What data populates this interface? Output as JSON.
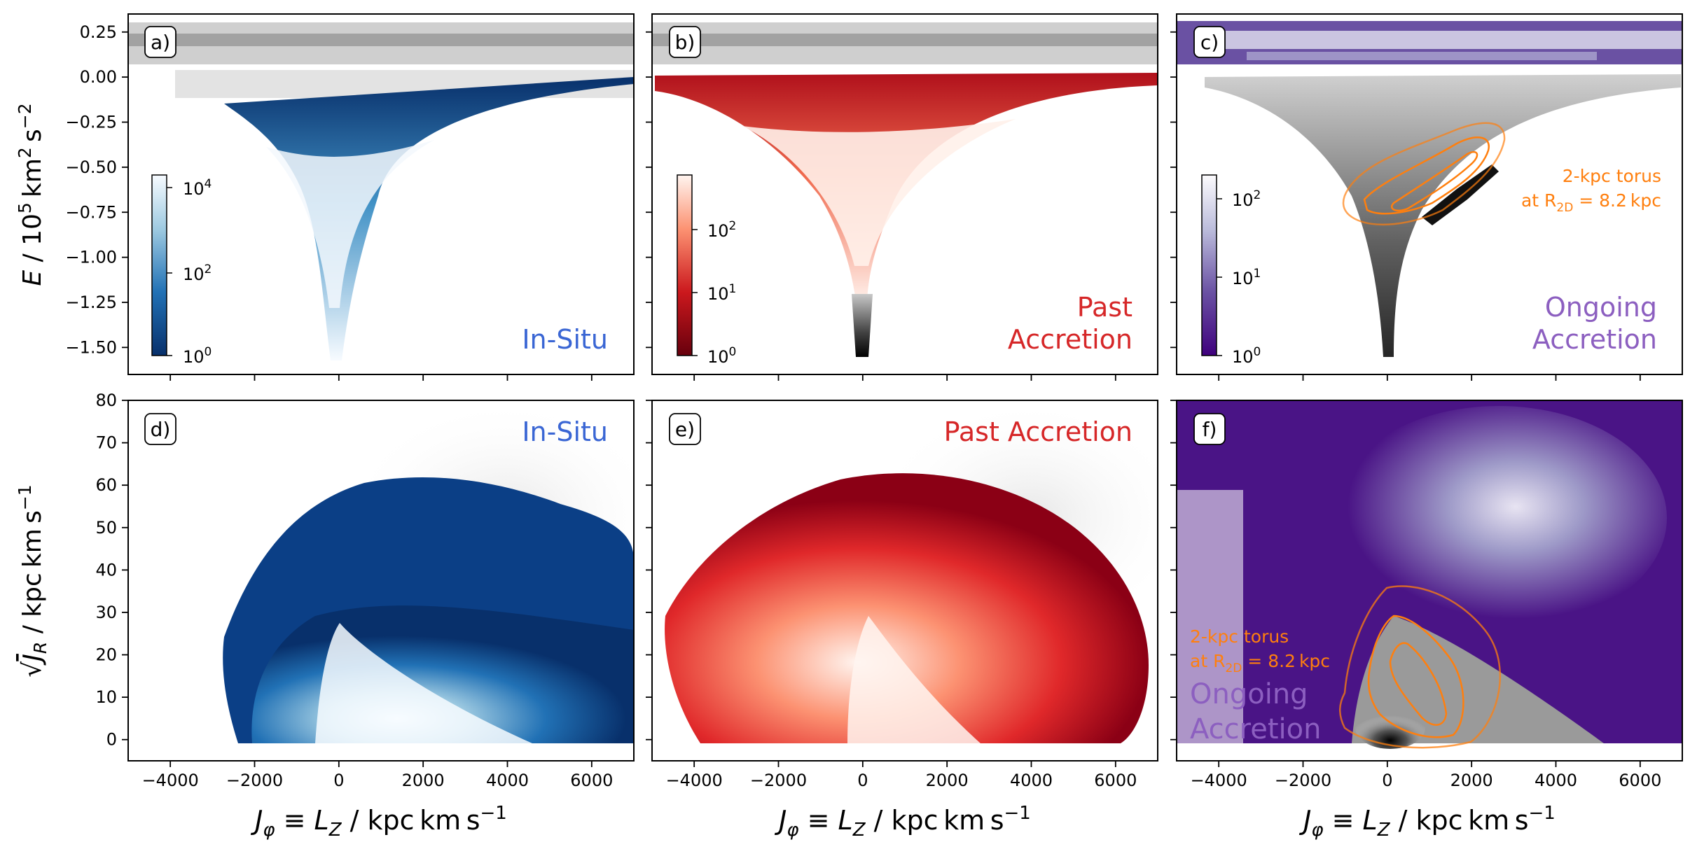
{
  "colors": {
    "in_situ": "#3a66d4",
    "past": "#d62728",
    "ongoing": "#8c5fc0",
    "torus": "#ff7f0e"
  },
  "chart_data": [
    {
      "type": "heatmap",
      "panel": "a)",
      "population": "In-Situ",
      "component_label": "In-Situ",
      "colormap": "Blues_r",
      "background": "grey (all stars)",
      "x": {
        "range": [
          -5000,
          7000
        ],
        "ticks": [
          -4000,
          -2000,
          0,
          2000,
          4000,
          6000
        ],
        "labels_shown": false
      },
      "y": {
        "range": [
          -1.65,
          0.35
        ],
        "ticks": [
          -1.5,
          -1.25,
          -1.0,
          -0.75,
          -0.5,
          -0.25,
          0.0,
          0.25
        ],
        "tick_labels": [
          "−1.50",
          "−1.25",
          "−1.00",
          "−0.75",
          "−0.50",
          "−0.25",
          "0.00",
          "0.25"
        ]
      },
      "colorbar": {
        "scale": "log",
        "ticks": [
          1,
          100,
          10000
        ],
        "tick_labels": [
          "10",
          "10",
          "10"
        ],
        "tick_exps": [
          "0",
          "2",
          "4"
        ]
      }
    },
    {
      "type": "heatmap",
      "panel": "b)",
      "population": "Past Accretion",
      "component_label": [
        "Past",
        "Accretion"
      ],
      "colormap": "Reds_r",
      "background": "grey (all stars)",
      "x": {
        "range": [
          -5000,
          7000
        ],
        "labels_shown": false
      },
      "y": {
        "range": [
          -1.65,
          0.35
        ],
        "labels_shown": false
      },
      "colorbar": {
        "scale": "log",
        "ticks": [
          1,
          10,
          100
        ],
        "tick_labels": [
          "10",
          "10",
          "10"
        ],
        "tick_exps": [
          "0",
          "1",
          "2"
        ]
      }
    },
    {
      "type": "heatmap",
      "panel": "c)",
      "population": "Ongoing Accretion",
      "component_label": [
        "Ongoing",
        "Accretion"
      ],
      "colormap": "Purples_r",
      "background": "grey (all stars)",
      "x": {
        "range": [
          -5000,
          7000
        ],
        "labels_shown": false
      },
      "y": {
        "range": [
          -1.65,
          0.35
        ],
        "labels_shown": false
      },
      "colorbar": {
        "scale": "log",
        "ticks": [
          1,
          10,
          100
        ],
        "tick_labels": [
          "10",
          "10",
          "10"
        ],
        "tick_exps": [
          "0",
          "1",
          "2"
        ]
      },
      "annotation": {
        "line1": "2-kpc torus",
        "line2_prefix": "at R",
        "line2_sub": "2D",
        "line2_suffix": " = 8.2 kpc"
      }
    },
    {
      "type": "heatmap",
      "panel": "d)",
      "population": "In-Situ",
      "component_label": "In-Situ",
      "colormap": "Blues_r",
      "background": "grey (all stars)",
      "x": {
        "range": [
          -5000,
          7000
        ],
        "ticks": [
          -4000,
          -2000,
          0,
          2000,
          4000,
          6000
        ],
        "tick_labels": [
          "−4000",
          "−2000",
          "0",
          "2000",
          "4000",
          "6000"
        ]
      },
      "y": {
        "range": [
          -5,
          80
        ],
        "ticks": [
          0,
          10,
          20,
          30,
          40,
          50,
          60,
          70,
          80
        ],
        "tick_labels": [
          "0",
          "10",
          "20",
          "30",
          "40",
          "50",
          "60",
          "70",
          "80"
        ]
      }
    },
    {
      "type": "heatmap",
      "panel": "e)",
      "population": "Past Accretion",
      "component_label": "Past Accretion",
      "colormap": "Reds_r",
      "background": "grey (all stars)",
      "x": {
        "range": [
          -5000,
          7000
        ],
        "tick_labels": [
          "−4000",
          "−2000",
          "0",
          "2000",
          "4000",
          "6000"
        ]
      },
      "y": {
        "range": [
          -5,
          80
        ],
        "labels_shown": false
      }
    },
    {
      "type": "heatmap",
      "panel": "f)",
      "population": "Ongoing Accretion",
      "component_label": [
        "Ongoing",
        "Accretion"
      ],
      "colormap": "Purples_r",
      "background": "grey (all stars)",
      "x": {
        "range": [
          -5000,
          7000
        ],
        "tick_labels": [
          "−4000",
          "−2000",
          "0",
          "2000",
          "4000",
          "6000"
        ]
      },
      "y": {
        "range": [
          -5,
          80
        ],
        "labels_shown": false
      },
      "annotation": {
        "line1": "2-kpc torus",
        "line2_prefix": "at R",
        "line2_sub": "2D",
        "line2_suffix": " = 8.2 kpc"
      }
    }
  ],
  "axes_labels": {
    "top_y": {
      "pre": "E",
      "mid": " / 10",
      "exp": "5",
      "post": " km",
      "exp2": "2",
      "post2": " s",
      "exp3": "−2"
    },
    "bottom_y": {
      "root": "√",
      "var": "J",
      "sub": "R",
      "post": " / kpc km s",
      "exp": "−1"
    },
    "x": {
      "var": "J",
      "sub": "φ",
      "mid": " ≡ ",
      "var2": "L",
      "sub2": "Z",
      "post": " / kpc km s",
      "exp": "−1"
    }
  }
}
